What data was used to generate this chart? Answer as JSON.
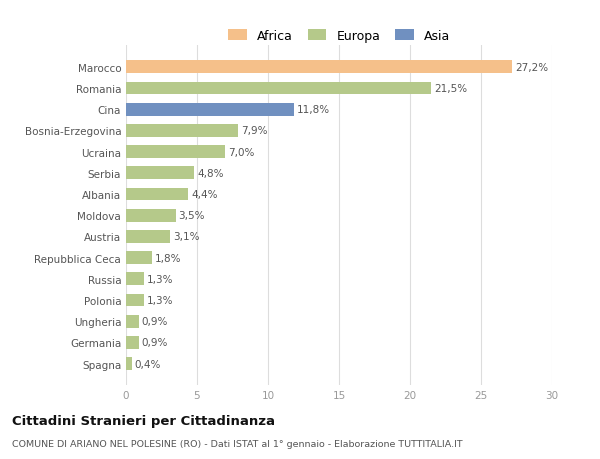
{
  "categories": [
    "Marocco",
    "Romania",
    "Cina",
    "Bosnia-Erzegovina",
    "Ucraina",
    "Serbia",
    "Albania",
    "Moldova",
    "Austria",
    "Repubblica Ceca",
    "Russia",
    "Polonia",
    "Ungheria",
    "Germania",
    "Spagna"
  ],
  "values": [
    27.2,
    21.5,
    11.8,
    7.9,
    7.0,
    4.8,
    4.4,
    3.5,
    3.1,
    1.8,
    1.3,
    1.3,
    0.9,
    0.9,
    0.4
  ],
  "labels": [
    "27,2%",
    "21,5%",
    "11,8%",
    "7,9%",
    "7,0%",
    "4,8%",
    "4,4%",
    "3,5%",
    "3,1%",
    "1,8%",
    "1,3%",
    "1,3%",
    "0,9%",
    "0,9%",
    "0,4%"
  ],
  "colors": [
    "#f5c08a",
    "#b5c98a",
    "#7090c0",
    "#b5c98a",
    "#b5c98a",
    "#b5c98a",
    "#b5c98a",
    "#b5c98a",
    "#b5c98a",
    "#b5c98a",
    "#b5c98a",
    "#b5c98a",
    "#b5c98a",
    "#b5c98a",
    "#b5c98a"
  ],
  "legend_labels": [
    "Africa",
    "Europa",
    "Asia"
  ],
  "legend_colors": [
    "#f5c08a",
    "#b5c98a",
    "#7090c0"
  ],
  "title": "Cittadini Stranieri per Cittadinanza",
  "subtitle": "COMUNE DI ARIANO NEL POLESINE (RO) - Dati ISTAT al 1° gennaio - Elaborazione TUTTITALIA.IT",
  "xlim": [
    0,
    30
  ],
  "xticks": [
    0,
    5,
    10,
    15,
    20,
    25,
    30
  ],
  "background_color": "#ffffff",
  "plot_bg_color": "#ffffff",
  "grid_color": "#dddddd",
  "label_color": "#555555",
  "tick_color": "#999999"
}
